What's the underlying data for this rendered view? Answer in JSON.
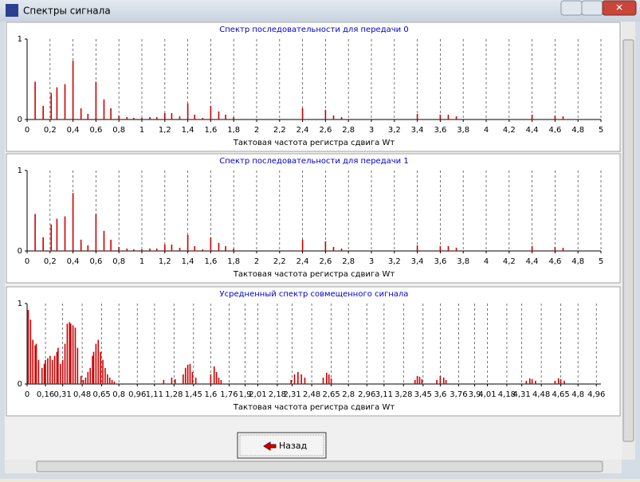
{
  "window": {
    "title": "Спектры сигнала"
  },
  "button": {
    "label": "Назад"
  },
  "chart_data": [
    {
      "type": "bar",
      "title": "Спектр  последовательности для передачи 0",
      "x_label": "Тактовая частота регистра сдвига Wт",
      "color": "#cc0000",
      "x": [
        0.07,
        0.14,
        0.21,
        0.26,
        0.33,
        0.4,
        0.47,
        0.53,
        0.6,
        0.67,
        0.73,
        0.8,
        0.87,
        0.93,
        1.0,
        1.07,
        1.13,
        1.2,
        1.26,
        1.33,
        1.4,
        1.46,
        1.53,
        1.6,
        1.67,
        1.73,
        1.8,
        2.4,
        2.6,
        2.67,
        2.74,
        3.4,
        3.6,
        3.67,
        3.74,
        4.4,
        4.6,
        4.67
      ],
      "values": [
        0.47,
        0.17,
        0.33,
        0.4,
        0.44,
        0.73,
        0.14,
        0.07,
        0.47,
        0.25,
        0.14,
        0.05,
        0.03,
        0.02,
        0.02,
        0.03,
        0.03,
        0.08,
        0.08,
        0.04,
        0.2,
        0.06,
        0.02,
        0.17,
        0.1,
        0.06,
        0.03,
        0.14,
        0.12,
        0.05,
        0.03,
        0.07,
        0.06,
        0.06,
        0.04,
        0.06,
        0.05,
        0.04
      ],
      "xlim": [
        0,
        5
      ],
      "ylim": [
        0,
        1
      ],
      "yticks": [
        0,
        1
      ],
      "xticks": [
        0,
        {
          "value": 0.2,
          "label": "0,2"
        },
        {
          "value": 0.4,
          "label": "0,4"
        },
        {
          "value": 0.6,
          "label": "0,6"
        },
        {
          "value": 0.8,
          "label": "0,8"
        },
        1,
        {
          "value": 1.2,
          "label": "1,2"
        },
        {
          "value": 1.4,
          "label": "1,4"
        },
        {
          "value": 1.6,
          "label": "1,6"
        },
        {
          "value": 1.8,
          "label": "1,8"
        },
        2,
        {
          "value": 2.2,
          "label": "2,2"
        },
        {
          "value": 2.4,
          "label": "2,4"
        },
        {
          "value": 2.6,
          "label": "2,6"
        },
        {
          "value": 2.8,
          "label": "2,8"
        },
        3,
        {
          "value": 3.2,
          "label": "3,2"
        },
        {
          "value": 3.4,
          "label": "3,4"
        },
        {
          "value": 3.6,
          "label": "3,6"
        },
        {
          "value": 3.8,
          "label": "3,8"
        },
        4,
        {
          "value": 4.2,
          "label": "4,2"
        },
        {
          "value": 4.4,
          "label": "4,4"
        },
        {
          "value": 4.6,
          "label": "4,6"
        },
        {
          "value": 4.8,
          "label": "4,8"
        },
        5
      ],
      "grid": true
    },
    {
      "type": "bar",
      "title": "Спектр последовательности для передачи 1",
      "x_label": "Тактовая частота регистра сдвига Wт",
      "color": "#cc0000",
      "x": [
        0.07,
        0.14,
        0.21,
        0.26,
        0.33,
        0.4,
        0.47,
        0.53,
        0.6,
        0.67,
        0.73,
        0.8,
        0.87,
        0.93,
        1.0,
        1.07,
        1.13,
        1.2,
        1.26,
        1.33,
        1.4,
        1.46,
        1.53,
        1.6,
        1.67,
        1.73,
        1.8,
        2.4,
        2.6,
        2.67,
        2.74,
        3.4,
        3.6,
        3.67,
        3.74,
        4.4,
        4.6,
        4.67
      ],
      "values": [
        0.46,
        0.17,
        0.33,
        0.4,
        0.43,
        0.72,
        0.14,
        0.07,
        0.46,
        0.25,
        0.14,
        0.05,
        0.03,
        0.02,
        0.02,
        0.03,
        0.03,
        0.08,
        0.08,
        0.04,
        0.2,
        0.06,
        0.02,
        0.17,
        0.1,
        0.06,
        0.03,
        0.14,
        0.12,
        0.05,
        0.03,
        0.07,
        0.06,
        0.06,
        0.04,
        0.06,
        0.05,
        0.04
      ],
      "xlim": [
        0,
        5
      ],
      "ylim": [
        0,
        1
      ],
      "yticks": [
        0,
        1
      ],
      "xticks": [
        0,
        {
          "value": 0.2,
          "label": "0,2"
        },
        {
          "value": 0.4,
          "label": "0,4"
        },
        {
          "value": 0.6,
          "label": "0,6"
        },
        {
          "value": 0.8,
          "label": "0,8"
        },
        1,
        {
          "value": 1.2,
          "label": "1,2"
        },
        {
          "value": 1.4,
          "label": "1,4"
        },
        {
          "value": 1.6,
          "label": "1,6"
        },
        {
          "value": 1.8,
          "label": "1,8"
        },
        2,
        {
          "value": 2.2,
          "label": "2,2"
        },
        {
          "value": 2.4,
          "label": "2,4"
        },
        {
          "value": 2.6,
          "label": "2,6"
        },
        {
          "value": 2.8,
          "label": "2,8"
        },
        3,
        {
          "value": 3.2,
          "label": "3,2"
        },
        {
          "value": 3.4,
          "label": "3,4"
        },
        {
          "value": 3.6,
          "label": "3,6"
        },
        {
          "value": 3.8,
          "label": "3,8"
        },
        4,
        {
          "value": 4.2,
          "label": "4,2"
        },
        {
          "value": 4.4,
          "label": "4,4"
        },
        {
          "value": 4.6,
          "label": "4,6"
        },
        {
          "value": 4.8,
          "label": "4,8"
        },
        5
      ],
      "grid": true
    },
    {
      "type": "bar",
      "title": "Усредненный спектр совмещенного сигнала",
      "x_label": "Тактовая частота регистра сдвига Wт",
      "color": "#cc0000",
      "x": [
        0.01,
        0.03,
        0.05,
        0.07,
        0.08,
        0.1,
        0.13,
        0.15,
        0.16,
        0.18,
        0.2,
        0.22,
        0.24,
        0.26,
        0.27,
        0.29,
        0.31,
        0.33,
        0.35,
        0.37,
        0.38,
        0.4,
        0.42,
        0.44,
        0.47,
        0.49,
        0.51,
        0.53,
        0.55,
        0.57,
        0.58,
        0.6,
        0.62,
        0.64,
        0.66,
        0.68,
        0.7,
        0.72,
        0.74,
        0.76,
        1.19,
        1.26,
        1.29,
        1.36,
        1.38,
        1.4,
        1.42,
        1.44,
        1.47,
        1.6,
        1.63,
        1.65,
        1.67,
        1.69,
        2.3,
        2.33,
        2.36,
        2.39,
        2.42,
        2.58,
        2.61,
        2.63,
        2.65,
        3.38,
        3.4,
        3.42,
        3.44,
        3.57,
        3.6,
        3.63,
        3.65,
        4.35,
        4.38,
        4.4,
        4.43,
        4.6,
        4.63,
        4.65,
        4.68
      ],
      "values": [
        0.92,
        0.8,
        0.55,
        0.48,
        0.5,
        0.3,
        0.2,
        0.25,
        0.3,
        0.32,
        0.35,
        0.3,
        0.35,
        0.4,
        0.45,
        0.25,
        0.3,
        0.5,
        0.75,
        0.77,
        0.75,
        0.73,
        0.7,
        0.45,
        0.1,
        0.05,
        0.08,
        0.15,
        0.2,
        0.35,
        0.4,
        0.5,
        0.55,
        0.4,
        0.3,
        0.2,
        0.12,
        0.08,
        0.05,
        0.03,
        0.05,
        0.08,
        0.06,
        0.12,
        0.2,
        0.24,
        0.25,
        0.15,
        0.08,
        0.12,
        0.22,
        0.15,
        0.08,
        0.05,
        0.05,
        0.12,
        0.15,
        0.12,
        0.08,
        0.08,
        0.14,
        0.12,
        0.07,
        0.05,
        0.1,
        0.09,
        0.06,
        0.05,
        0.1,
        0.08,
        0.05,
        0.04,
        0.07,
        0.06,
        0.04,
        0.04,
        0.07,
        0.06,
        0.04
      ],
      "xlim": [
        0,
        5
      ],
      "ylim": [
        0,
        1
      ],
      "yticks": [
        0,
        1
      ],
      "xticks": [
        0,
        {
          "value": 0.16,
          "label": "0,16"
        },
        {
          "value": 0.31,
          "label": "0,31"
        },
        {
          "value": 0.48,
          "label": "0,48"
        },
        {
          "value": 0.65,
          "label": "0,65"
        },
        {
          "value": 0.8,
          "label": "0,8"
        },
        {
          "value": 0.96,
          "label": "0,96"
        },
        {
          "value": 1.11,
          "label": "1,11"
        },
        {
          "value": 1.28,
          "label": "1,28"
        },
        {
          "value": 1.45,
          "label": "1,45"
        },
        {
          "value": 1.6,
          "label": "1,6"
        },
        {
          "value": 1.76,
          "label": "1,76"
        },
        {
          "value": 1.9,
          "label": "1,9"
        },
        {
          "value": 2.01,
          "label": "2,01"
        },
        {
          "value": 2.18,
          "label": "2,18"
        },
        {
          "value": 2.31,
          "label": "2,31"
        },
        {
          "value": 2.48,
          "label": "2,48"
        },
        {
          "value": 2.65,
          "label": "2,65"
        },
        {
          "value": 2.8,
          "label": "2,8"
        },
        {
          "value": 2.96,
          "label": "2,96"
        },
        {
          "value": 3.11,
          "label": "3,11"
        },
        {
          "value": 3.28,
          "label": "3,28"
        },
        {
          "value": 3.45,
          "label": "3,45"
        },
        {
          "value": 3.6,
          "label": "3,6"
        },
        {
          "value": 3.76,
          "label": "3,76"
        },
        {
          "value": 3.9,
          "label": "3,9"
        },
        {
          "value": 4.01,
          "label": "4,01"
        },
        {
          "value": 4.18,
          "label": "4,18"
        },
        {
          "value": 4.31,
          "label": "4,31"
        },
        {
          "value": 4.48,
          "label": "4,48"
        },
        {
          "value": 4.65,
          "label": "4,65"
        },
        {
          "value": 4.8,
          "label": "4,8"
        },
        {
          "value": 4.96,
          "label": "4,96"
        }
      ],
      "grid": true
    }
  ]
}
